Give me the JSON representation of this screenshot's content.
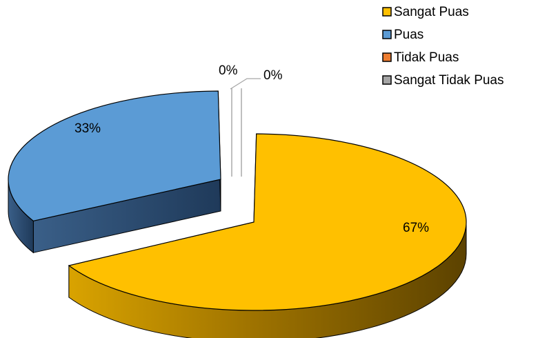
{
  "chart_data": {
    "type": "pie",
    "title": "",
    "style": "3d-exploded",
    "legend_position": "top-right",
    "categories": [
      "Sangat Puas",
      "Puas",
      "Tidak Puas",
      "Sangat Tidak Puas"
    ],
    "values": [
      67,
      33,
      0,
      0
    ],
    "labels": [
      "67%",
      "33%",
      "0%",
      "0%"
    ],
    "colors": [
      "#FFC000",
      "#5B9BD5",
      "#ED7D31",
      "#A5A5A5"
    ]
  }
}
